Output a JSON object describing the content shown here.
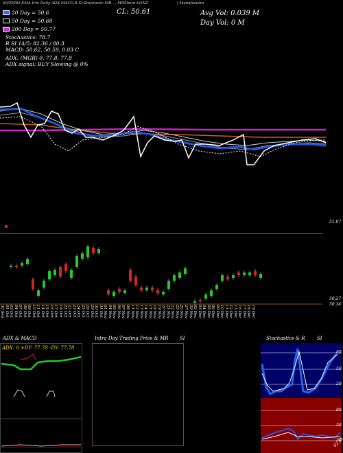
{
  "header": {
    "ticker_line": "00/ZERO EMA Ichi Daily ADX,MACD,B  SLStochastic MR  ... MRShare LONZ",
    "ticker_right": "| Munafasutra",
    "close": "CL: 50.61",
    "avg_vol": "Avg Vol: 0.039 M",
    "day_vol": "Day Vol: 0   M"
  },
  "legend": [
    {
      "label": "20  Day = 50.6",
      "color": "#3366ff"
    },
    {
      "label": "50  Day = 50.68",
      "color": "#000000"
    },
    {
      "label": "200  Day = 50.77",
      "color": "#cc33cc"
    }
  ],
  "stats": {
    "stochastics": "Stochastics: 78.7",
    "rsi": "R               SI 14/5: 82.36  / 80.3",
    "macd": "MACD: 50.62, 50.59, 0.03 C",
    "adx1": "ADX:                                  (MGR) 0,  77.8,  77.8",
    "adx2": "ADX  signal:                                       BUY Slowing @ 0%"
  },
  "price_axis": {
    "top_right": "51.07",
    "bottom_right1": "50.27",
    "bottom_right2": "50.14"
  },
  "dates": [
    "30 Sep",
    "01 Oct",
    "03 Oct",
    "04 Oct",
    "07 Oct",
    "08 Oct",
    "09 Oct",
    "10 Oct",
    "11 Oct",
    "14 Oct",
    "15 Oct",
    "16 Oct",
    "17 Oct",
    "18 Oct",
    "21 Oct",
    "22 Oct",
    "23 Oct",
    "24 Oct",
    "25 Oct",
    "28 Oct",
    "29 Oct",
    "30 Oct",
    "31 Oct",
    "01 Nov",
    "04 Nov",
    "05 Nov",
    "06 Nov",
    "07 Nov",
    "08 Nov",
    "11 Nov",
    "12 Nov",
    "13 Nov",
    "14 Nov",
    "15 Nov",
    "18 Nov",
    "19 Nov",
    "20 Nov",
    "21 Nov",
    "22 Nov",
    "25 Nov",
    "26 Nov",
    "27 Nov",
    "29 Nov",
    "02 Dec",
    "03 Dec",
    "04 Dec",
    "05 Dec",
    "06 Dec",
    "09 Dec",
    "10 Dec",
    "11 Dec",
    "12 Dec",
    "13 Dec",
    "16 Dec",
    "17 Dec",
    "18 Dec",
    "19 Dec"
  ],
  "bottom_panels": {
    "adx_title": "ADX  & MACD",
    "adx_readout": "ADX: 0    +DY: 77.78    -DY: 77.78",
    "intra_title": "Intra  Day Trading Price  & MR",
    "intra_si": "SI",
    "stoch_title": "Stochastics & R",
    "stoch_si": "SI",
    "stoch_ticks": [
      "80",
      "50",
      "20"
    ],
    "rsi_ticks": [
      "80",
      "50",
      "20"
    ],
    "rsi_value": "82.36"
  },
  "colors": {
    "ema20": "#2255dd",
    "ema200": "#cc22cc",
    "ema_orange": "#cc6600",
    "bull": "#22cc22",
    "bear": "#dd2222",
    "stoch_bg": "#000066",
    "rsi_bg": "#880000"
  }
}
